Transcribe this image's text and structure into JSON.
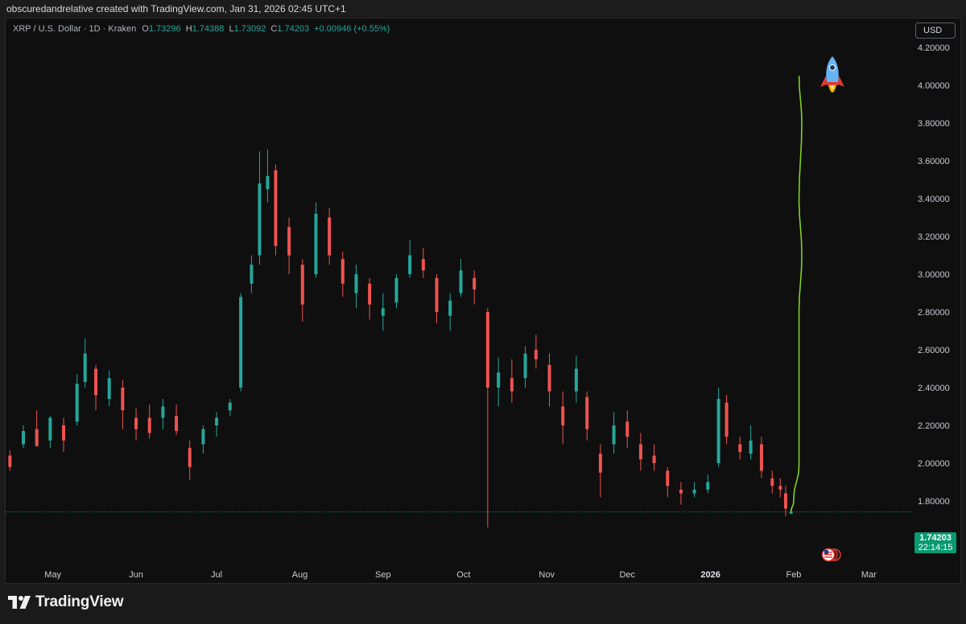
{
  "header": {
    "credit": "obscuredandrelative created with TradingView.com, Jan 31, 2026 02:45 UTC+1"
  },
  "legend": {
    "symbol": "XRP / U.S. Dollar · 1D · Kraken",
    "open_label": "O",
    "open": "1.73296",
    "high_label": "H",
    "high": "1.74388",
    "low_label": "L",
    "low": "1.73092",
    "close_label": "C",
    "close": "1.74203",
    "change": "+0.00946 (+0.55%)"
  },
  "currency": "USD",
  "price_tag": {
    "price": "1.74203",
    "countdown": "22:14:15"
  },
  "brand": {
    "name": "TradingView"
  },
  "colors": {
    "up": "#26a69a",
    "down": "#ef5350",
    "projection": "#7ed321",
    "last_price_tag": "#0a9a72"
  },
  "icons": [
    "rocket-icon",
    "us-flag-event-icon",
    "tradingview-logo-icon"
  ],
  "chart_data": {
    "type": "candlestick",
    "title": "",
    "xlabel": "",
    "ylabel": "",
    "x_ticks": [
      "May",
      "Jun",
      "Jul",
      "Aug",
      "Sep",
      "Oct",
      "Nov",
      "Dec",
      "2026",
      "Feb",
      "Mar"
    ],
    "y_ticks": [
      "1.80000",
      "2.00000",
      "2.20000",
      "2.40000",
      "2.60000",
      "2.80000",
      "3.00000",
      "3.20000",
      "3.40000",
      "3.60000",
      "3.80000",
      "4.00000",
      "4.20000"
    ],
    "ylim": [
      1.63,
      4.55
    ],
    "xlim": [
      "2025-04-14",
      "2026-03-15"
    ],
    "grid": false,
    "series": [
      {
        "style": "candles",
        "points": [
          {
            "date": "2025-04-15",
            "open": 2.04,
            "high": 2.07,
            "low": 1.96,
            "close": 1.98
          },
          {
            "date": "2025-04-20",
            "open": 2.1,
            "high": 2.2,
            "low": 2.08,
            "close": 2.17
          },
          {
            "date": "2025-04-25",
            "open": 2.18,
            "high": 2.28,
            "low": 2.09,
            "close": 2.09
          },
          {
            "date": "2025-04-30",
            "open": 2.12,
            "high": 2.25,
            "low": 2.08,
            "close": 2.24
          },
          {
            "date": "2025-05-05",
            "open": 2.2,
            "high": 2.24,
            "low": 2.06,
            "close": 2.12
          },
          {
            "date": "2025-05-10",
            "open": 2.22,
            "high": 2.47,
            "low": 2.2,
            "close": 2.42
          },
          {
            "date": "2025-05-13",
            "open": 2.43,
            "high": 2.66,
            "low": 2.4,
            "close": 2.58
          },
          {
            "date": "2025-05-17",
            "open": 2.5,
            "high": 2.52,
            "low": 2.28,
            "close": 2.36
          },
          {
            "date": "2025-05-22",
            "open": 2.34,
            "high": 2.49,
            "low": 2.3,
            "close": 2.45
          },
          {
            "date": "2025-05-27",
            "open": 2.4,
            "high": 2.44,
            "low": 2.18,
            "close": 2.28
          },
          {
            "date": "2025-06-01",
            "open": 2.24,
            "high": 2.29,
            "low": 2.12,
            "close": 2.18
          },
          {
            "date": "2025-06-06",
            "open": 2.24,
            "high": 2.31,
            "low": 2.13,
            "close": 2.16
          },
          {
            "date": "2025-06-11",
            "open": 2.24,
            "high": 2.34,
            "low": 2.18,
            "close": 2.3
          },
          {
            "date": "2025-06-16",
            "open": 2.25,
            "high": 2.31,
            "low": 2.15,
            "close": 2.17
          },
          {
            "date": "2025-06-21",
            "open": 2.08,
            "high": 2.12,
            "low": 1.91,
            "close": 1.98
          },
          {
            "date": "2025-06-26",
            "open": 2.1,
            "high": 2.2,
            "low": 2.05,
            "close": 2.18
          },
          {
            "date": "2025-07-01",
            "open": 2.2,
            "high": 2.27,
            "low": 2.14,
            "close": 2.24
          },
          {
            "date": "2025-07-06",
            "open": 2.28,
            "high": 2.34,
            "low": 2.25,
            "close": 2.32
          },
          {
            "date": "2025-07-10",
            "open": 2.4,
            "high": 2.9,
            "low": 2.38,
            "close": 2.88
          },
          {
            "date": "2025-07-14",
            "open": 2.95,
            "high": 3.1,
            "low": 2.9,
            "close": 3.05
          },
          {
            "date": "2025-07-17",
            "open": 3.1,
            "high": 3.65,
            "low": 3.05,
            "close": 3.48
          },
          {
            "date": "2025-07-20",
            "open": 3.45,
            "high": 3.66,
            "low": 3.38,
            "close": 3.52
          },
          {
            "date": "2025-07-23",
            "open": 3.55,
            "high": 3.58,
            "low": 3.1,
            "close": 3.15
          },
          {
            "date": "2025-07-28",
            "open": 3.25,
            "high": 3.3,
            "low": 3.0,
            "close": 3.1
          },
          {
            "date": "2025-08-02",
            "open": 3.05,
            "high": 3.08,
            "low": 2.75,
            "close": 2.84
          },
          {
            "date": "2025-08-07",
            "open": 3.0,
            "high": 3.38,
            "low": 2.98,
            "close": 3.32
          },
          {
            "date": "2025-08-12",
            "open": 3.3,
            "high": 3.35,
            "low": 3.05,
            "close": 3.1
          },
          {
            "date": "2025-08-17",
            "open": 3.08,
            "high": 3.12,
            "low": 2.88,
            "close": 2.95
          },
          {
            "date": "2025-08-22",
            "open": 2.9,
            "high": 3.05,
            "low": 2.82,
            "close": 3.0
          },
          {
            "date": "2025-08-27",
            "open": 2.95,
            "high": 2.98,
            "low": 2.76,
            "close": 2.84
          },
          {
            "date": "2025-09-01",
            "open": 2.78,
            "high": 2.9,
            "low": 2.7,
            "close": 2.82
          },
          {
            "date": "2025-09-06",
            "open": 2.85,
            "high": 3.0,
            "low": 2.82,
            "close": 2.98
          },
          {
            "date": "2025-09-11",
            "open": 3.0,
            "high": 3.18,
            "low": 2.98,
            "close": 3.1
          },
          {
            "date": "2025-09-16",
            "open": 3.08,
            "high": 3.14,
            "low": 2.98,
            "close": 3.02
          },
          {
            "date": "2025-09-21",
            "open": 2.98,
            "high": 3.0,
            "low": 2.74,
            "close": 2.8
          },
          {
            "date": "2025-09-26",
            "open": 2.78,
            "high": 2.9,
            "low": 2.7,
            "close": 2.86
          },
          {
            "date": "2025-09-30",
            "open": 2.9,
            "high": 3.08,
            "low": 2.88,
            "close": 3.02
          },
          {
            "date": "2025-10-05",
            "open": 2.98,
            "high": 3.02,
            "low": 2.84,
            "close": 2.92
          },
          {
            "date": "2025-10-10",
            "open": 2.8,
            "high": 2.82,
            "low": 1.66,
            "close": 2.4
          },
          {
            "date": "2025-10-14",
            "open": 2.4,
            "high": 2.56,
            "low": 2.3,
            "close": 2.48
          },
          {
            "date": "2025-10-19",
            "open": 2.45,
            "high": 2.55,
            "low": 2.32,
            "close": 2.38
          },
          {
            "date": "2025-10-24",
            "open": 2.45,
            "high": 2.62,
            "low": 2.4,
            "close": 2.58
          },
          {
            "date": "2025-10-28",
            "open": 2.6,
            "high": 2.68,
            "low": 2.5,
            "close": 2.55
          },
          {
            "date": "2025-11-02",
            "open": 2.52,
            "high": 2.58,
            "low": 2.3,
            "close": 2.38
          },
          {
            "date": "2025-11-07",
            "open": 2.3,
            "high": 2.38,
            "low": 2.1,
            "close": 2.2
          },
          {
            "date": "2025-11-12",
            "open": 2.38,
            "high": 2.57,
            "low": 2.32,
            "close": 2.5
          },
          {
            "date": "2025-11-16",
            "open": 2.35,
            "high": 2.38,
            "low": 2.12,
            "close": 2.18
          },
          {
            "date": "2025-11-21",
            "open": 2.05,
            "high": 2.1,
            "low": 1.82,
            "close": 1.95
          },
          {
            "date": "2025-11-26",
            "open": 2.1,
            "high": 2.27,
            "low": 2.05,
            "close": 2.2
          },
          {
            "date": "2025-12-01",
            "open": 2.22,
            "high": 2.28,
            "low": 2.08,
            "close": 2.14
          },
          {
            "date": "2025-12-06",
            "open": 2.1,
            "high": 2.16,
            "low": 1.96,
            "close": 2.02
          },
          {
            "date": "2025-12-11",
            "open": 2.04,
            "high": 2.1,
            "low": 1.96,
            "close": 2.0
          },
          {
            "date": "2025-12-16",
            "open": 1.96,
            "high": 1.98,
            "low": 1.82,
            "close": 1.88
          },
          {
            "date": "2025-12-21",
            "open": 1.86,
            "high": 1.9,
            "low": 1.78,
            "close": 1.84
          },
          {
            "date": "2025-12-26",
            "open": 1.84,
            "high": 1.9,
            "low": 1.82,
            "close": 1.86
          },
          {
            "date": "2025-12-31",
            "open": 1.86,
            "high": 1.94,
            "low": 1.84,
            "close": 1.9
          },
          {
            "date": "2026-01-04",
            "open": 2.0,
            "high": 2.4,
            "low": 1.98,
            "close": 2.34
          },
          {
            "date": "2026-01-07",
            "open": 2.32,
            "high": 2.36,
            "low": 2.1,
            "close": 2.14
          },
          {
            "date": "2026-01-12",
            "open": 2.1,
            "high": 2.14,
            "low": 2.02,
            "close": 2.06
          },
          {
            "date": "2026-01-16",
            "open": 2.05,
            "high": 2.2,
            "low": 2.02,
            "close": 2.12
          },
          {
            "date": "2026-01-20",
            "open": 2.1,
            "high": 2.14,
            "low": 1.92,
            "close": 1.96
          },
          {
            "date": "2026-01-24",
            "open": 1.92,
            "high": 1.96,
            "low": 1.84,
            "close": 1.88
          },
          {
            "date": "2026-01-27",
            "open": 1.88,
            "high": 1.92,
            "low": 1.82,
            "close": 1.86
          },
          {
            "date": "2026-01-29",
            "open": 1.84,
            "high": 1.88,
            "low": 1.72,
            "close": 1.76
          },
          {
            "date": "2026-01-31",
            "open": 1.73296,
            "high": 1.74388,
            "low": 1.73092,
            "close": 1.74203
          }
        ]
      },
      {
        "style": "projection",
        "points": [
          {
            "date": "2026-01-31",
            "y": 1.74
          },
          {
            "date": "2026-02-01",
            "y": 1.8
          },
          {
            "date": "2026-02-03",
            "y": 2.0
          },
          {
            "date": "2026-02-03",
            "y": 2.4
          },
          {
            "date": "2026-02-03",
            "y": 2.8
          },
          {
            "date": "2026-02-04",
            "y": 3.1
          },
          {
            "date": "2026-02-03",
            "y": 3.4
          },
          {
            "date": "2026-02-04",
            "y": 3.8
          },
          {
            "date": "2026-02-03",
            "y": 4.05
          }
        ]
      }
    ],
    "last_price": 1.74203
  }
}
